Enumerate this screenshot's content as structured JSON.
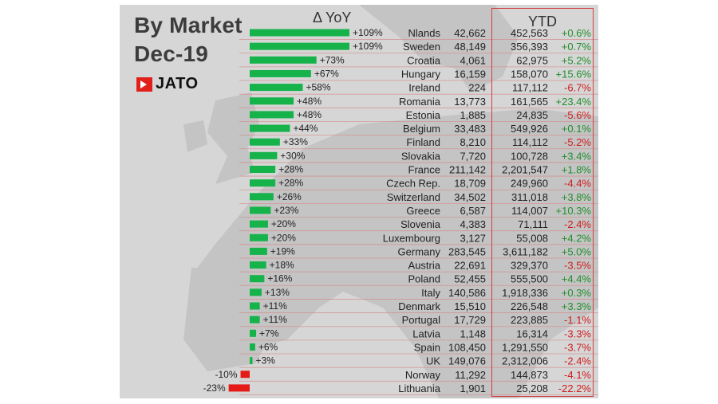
{
  "header": {
    "title": "By Market",
    "subtitle": "Dec-19",
    "logo": "JATO",
    "yoy_label": "Δ YoY",
    "ytd_label": "YTD"
  },
  "colors": {
    "positive_bar": "#16b24a",
    "negative_bar": "#e41b17",
    "positive_text": "#1f8f2a",
    "negative_text": "#d21b1b",
    "row_line": "#d78a8a"
  },
  "chart_data": {
    "type": "bar",
    "categories": [
      "Nlands",
      "Sweden",
      "Croatia",
      "Hungary",
      "Ireland",
      "Romania",
      "Estonia",
      "Belgium",
      "Finland",
      "Slovakia",
      "France",
      "Czech Rep.",
      "Switzerland",
      "Greece",
      "Slovenia",
      "Luxembourg",
      "Germany",
      "Austria",
      "Poland",
      "Italy",
      "Denmark",
      "Portugal",
      "Latvia",
      "Spain",
      "UK",
      "Norway",
      "Lithuania"
    ],
    "series": [
      {
        "name": "Δ YoY",
        "values": [
          109,
          109,
          73,
          67,
          58,
          48,
          48,
          44,
          33,
          30,
          28,
          28,
          26,
          23,
          20,
          20,
          19,
          18,
          16,
          13,
          11,
          11,
          7,
          6,
          3,
          -10,
          -23
        ],
        "labels": [
          "+109%",
          "+109%",
          "+73%",
          "+67%",
          "+58%",
          "+48%",
          "+48%",
          "+44%",
          "+33%",
          "+30%",
          "+28%",
          "+28%",
          "+26%",
          "+23%",
          "+20%",
          "+20%",
          "+19%",
          "+18%",
          "+16%",
          "+13%",
          "+11%",
          "+11%",
          "+7%",
          "+6%",
          "+3%",
          "-10%",
          "-23%"
        ]
      }
    ],
    "month_units": [
      "42,662",
      "48,149",
      "4,061",
      "16,159",
      "224",
      "13,773",
      "1,885",
      "33,483",
      "8,210",
      "7,720",
      "211,142",
      "18,709",
      "34,502",
      "6,587",
      "4,383",
      "3,127",
      "283,545",
      "22,691",
      "52,455",
      "140,586",
      "15,510",
      "17,729",
      "1,148",
      "108,450",
      "149,076",
      "11,292",
      "1,901"
    ],
    "ytd_units": [
      "452,563",
      "356,393",
      "62,975",
      "158,070",
      "117,112",
      "161,565",
      "24,835",
      "549,926",
      "114,112",
      "100,728",
      "2,201,547",
      "249,960",
      "311,018",
      "114,007",
      "71,111",
      "55,008",
      "3,611,182",
      "329,370",
      "555,500",
      "1,918,336",
      "226,548",
      "223,885",
      "16,314",
      "1,291,550",
      "2,312,006",
      "144,873",
      "25,208"
    ],
    "ytd_change": [
      "+0.6%",
      "+0.7%",
      "+5.2%",
      "+15.6%",
      "-6.7%",
      "+23.4%",
      "-5.6%",
      "+0.1%",
      "-5.2%",
      "+3.4%",
      "+1.8%",
      "-4.4%",
      "+3.8%",
      "+10.3%",
      "-2.4%",
      "+4.2%",
      "+5.0%",
      "-3.5%",
      "+4.4%",
      "+0.3%",
      "+3.3%",
      "-1.1%",
      "-3.3%",
      "-3.7%",
      "-2.4%",
      "-4.1%",
      "-22.2%"
    ]
  }
}
